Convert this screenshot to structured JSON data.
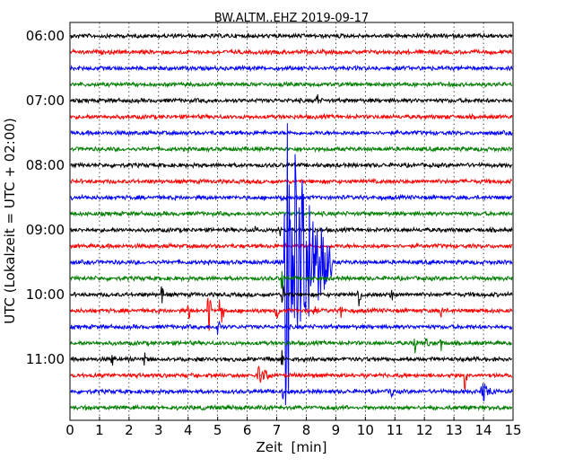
{
  "chart_data": {
    "type": "line",
    "title": "BW.ALTM..EHZ 2019-09-17",
    "xlabel": "Zeit  [min]",
    "ylabel": "UTC (Lokalzeit = UTC + 02:00)",
    "xlim": [
      0,
      15
    ],
    "x_ticks": [
      "0",
      "1",
      "2",
      "3",
      "4",
      "5",
      "6",
      "7",
      "8",
      "9",
      "10",
      "11",
      "12",
      "13",
      "14",
      "15"
    ],
    "y_ticks": [
      "06:00",
      "07:00",
      "08:00",
      "09:00",
      "10:00",
      "11:00"
    ],
    "grid": true,
    "trace_start_times": [
      "06:00",
      "06:15",
      "06:30",
      "06:45",
      "07:00",
      "07:15",
      "07:30",
      "07:45",
      "08:00",
      "08:15",
      "08:30",
      "08:45",
      "09:00",
      "09:15",
      "09:30",
      "09:45",
      "10:00",
      "10:15",
      "10:30",
      "10:45",
      "11:00",
      "11:15",
      "11:30",
      "11:45"
    ],
    "trace_colors": [
      "#000000",
      "#ff0000",
      "#0000ff",
      "#008000"
    ],
    "events": [
      {
        "trace": "07:00",
        "minute": 8.4,
        "amplitude": 0.4
      },
      {
        "trace": "08:30",
        "minute": 7.2,
        "amplitude": 0.3
      },
      {
        "trace": "09:00",
        "minute": 6.3,
        "amplitude": 0.3
      },
      {
        "trace": "09:00",
        "minute": 7.1,
        "amplitude": 0.6
      },
      {
        "trace": "09:30",
        "minute": 7.3,
        "amplitude": 11.5,
        "coda": 1.6
      },
      {
        "trace": "09:45",
        "minute": 7.2,
        "amplitude": 1.0
      },
      {
        "trace": "10:00",
        "minute": 3.1,
        "amplitude": 0.8
      },
      {
        "trace": "10:00",
        "minute": 7.2,
        "amplitude": 1.2
      },
      {
        "trace": "10:00",
        "minute": 9.8,
        "amplitude": 1.2
      },
      {
        "trace": "10:00",
        "minute": 10.9,
        "amplitude": 1.0
      },
      {
        "trace": "10:15",
        "minute": 4.0,
        "amplitude": 0.8
      },
      {
        "trace": "10:15",
        "minute": 4.7,
        "amplitude": 2.0
      },
      {
        "trace": "10:15",
        "minute": 5.1,
        "amplitude": 2.0
      },
      {
        "trace": "10:15",
        "minute": 7.0,
        "amplitude": 0.6
      },
      {
        "trace": "10:15",
        "minute": 8.3,
        "amplitude": 0.5
      },
      {
        "trace": "10:15",
        "minute": 9.2,
        "amplitude": 0.5
      },
      {
        "trace": "10:15",
        "minute": 12.6,
        "amplitude": 0.5
      },
      {
        "trace": "10:30",
        "minute": 5.0,
        "amplitude": 0.7
      },
      {
        "trace": "10:45",
        "minute": 11.7,
        "amplitude": 0.7
      },
      {
        "trace": "10:45",
        "minute": 12.1,
        "amplitude": 0.6
      },
      {
        "trace": "10:45",
        "minute": 12.6,
        "amplitude": 0.6
      },
      {
        "trace": "11:00",
        "minute": 1.4,
        "amplitude": 0.5
      },
      {
        "trace": "11:00",
        "minute": 2.5,
        "amplitude": 0.5
      },
      {
        "trace": "11:00",
        "minute": 7.2,
        "amplitude": 0.7
      },
      {
        "trace": "11:15",
        "minute": 6.4,
        "amplitude": 0.8,
        "coda": 0.5
      },
      {
        "trace": "11:15",
        "minute": 13.4,
        "amplitude": 1.0
      },
      {
        "trace": "11:15",
        "minute": 15.0,
        "amplitude": 1.0
      },
      {
        "trace": "11:30",
        "minute": 7.2,
        "amplitude": 0.8
      },
      {
        "trace": "11:30",
        "minute": 10.9,
        "amplitude": 0.6
      },
      {
        "trace": "11:30",
        "minute": 14.0,
        "amplitude": 0.8,
        "coda": 0.4
      }
    ]
  }
}
